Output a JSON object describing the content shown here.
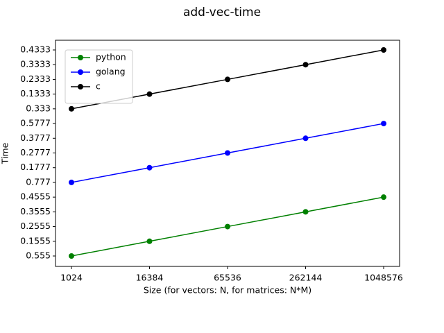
{
  "chart_data": {
    "type": "line",
    "title": "add-vec-time",
    "x_label": "Size (for vectors: N, for matrices: N*M)",
    "y_label": "Time",
    "categories": [
      "1024",
      "16384",
      "65536",
      "262144",
      "1048576"
    ],
    "series": [
      {
        "name": "python",
        "color": "#008000",
        "values": [
          "0.555",
          "0.1555",
          "0.2555",
          "0.3555",
          "0.4555"
        ]
      },
      {
        "name": "golang",
        "color": "#0000ff",
        "values": [
          "0.777",
          "0.1777",
          "0.2777",
          "0.3777",
          "0.5777"
        ]
      },
      {
        "name": "c",
        "color": "#000000",
        "values": [
          "0.333",
          "0.1333",
          "0.2333",
          "0.3333",
          "0.4333"
        ]
      }
    ],
    "legend": "upper left"
  }
}
